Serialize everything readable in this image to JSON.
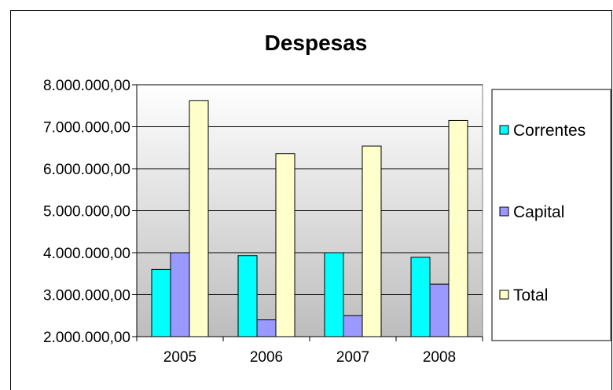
{
  "chart_data": {
    "type": "bar",
    "title": "Despesas",
    "categories": [
      "2005",
      "2006",
      "2007",
      "2008"
    ],
    "series": [
      {
        "name": "Correntes",
        "color": "#00FFFF",
        "values": [
          3600000,
          3930000,
          4000000,
          3890000
        ]
      },
      {
        "name": "Capital",
        "color": "#9999FF",
        "values": [
          4000000,
          2400000,
          2500000,
          3250000
        ]
      },
      {
        "name": "Total",
        "color": "#FFFFCC",
        "values": [
          7620000,
          6360000,
          6540000,
          7150000
        ]
      }
    ],
    "ylim": [
      2000000,
      8000000
    ],
    "yticks": [
      "2.000.000,00",
      "3.000.000,00",
      "4.000.000,00",
      "5.000.000,00",
      "6.000.000,00",
      "7.000.000,00",
      "8.000.000,00"
    ],
    "ytick_values": [
      2000000,
      3000000,
      4000000,
      5000000,
      6000000,
      7000000,
      8000000
    ],
    "grid": true,
    "legend_position": "right"
  }
}
